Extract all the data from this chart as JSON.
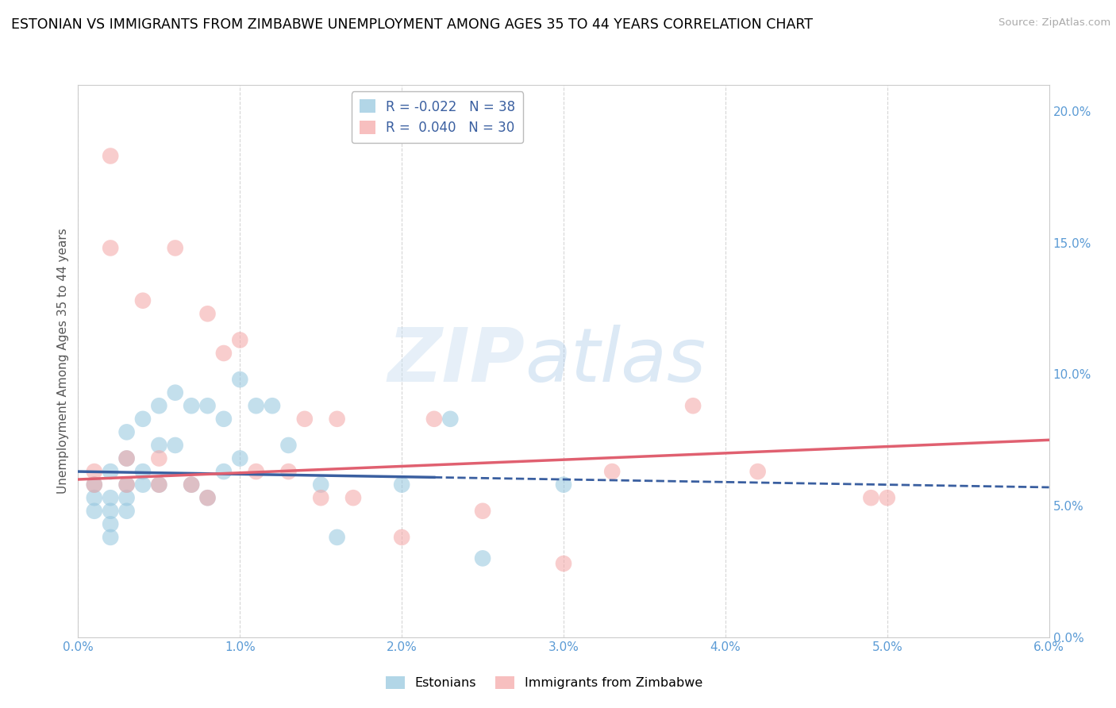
{
  "title": "ESTONIAN VS IMMIGRANTS FROM ZIMBABWE UNEMPLOYMENT AMONG AGES 35 TO 44 YEARS CORRELATION CHART",
  "source": "Source: ZipAtlas.com",
  "ylabel": "Unemployment Among Ages 35 to 44 years",
  "xlim": [
    0.0,
    0.06
  ],
  "ylim": [
    0.0,
    0.21
  ],
  "xticks": [
    0.0,
    0.01,
    0.02,
    0.03,
    0.04,
    0.05,
    0.06
  ],
  "xticklabels": [
    "0.0%",
    "1.0%",
    "2.0%",
    "3.0%",
    "4.0%",
    "5.0%",
    "6.0%"
  ],
  "yticks": [
    0.0,
    0.05,
    0.1,
    0.15,
    0.2
  ],
  "yticklabels": [
    "0.0%",
    "5.0%",
    "10.0%",
    "15.0%",
    "20.0%"
  ],
  "watermark_zip": "ZIP",
  "watermark_atlas": "atlas",
  "legend_r1": "R = -0.022",
  "legend_n1": "N = 38",
  "legend_r2": "R =  0.040",
  "legend_n2": "N = 30",
  "color_estonian": "#92c5de",
  "color_zimbabwe": "#f4a5a5",
  "color_estonian_line": "#3a5fa0",
  "color_zimbabwe_line": "#e06070",
  "color_axis_text": "#5b9bd5",
  "estonians_x": [
    0.001,
    0.001,
    0.001,
    0.002,
    0.002,
    0.002,
    0.002,
    0.002,
    0.003,
    0.003,
    0.003,
    0.003,
    0.003,
    0.004,
    0.004,
    0.004,
    0.005,
    0.005,
    0.005,
    0.006,
    0.006,
    0.007,
    0.007,
    0.008,
    0.008,
    0.009,
    0.009,
    0.01,
    0.01,
    0.011,
    0.012,
    0.013,
    0.015,
    0.016,
    0.02,
    0.023,
    0.025,
    0.03
  ],
  "estonians_y": [
    0.058,
    0.053,
    0.048,
    0.063,
    0.053,
    0.048,
    0.043,
    0.038,
    0.078,
    0.068,
    0.058,
    0.053,
    0.048,
    0.083,
    0.063,
    0.058,
    0.088,
    0.073,
    0.058,
    0.093,
    0.073,
    0.088,
    0.058,
    0.088,
    0.053,
    0.083,
    0.063,
    0.098,
    0.068,
    0.088,
    0.088,
    0.073,
    0.058,
    0.038,
    0.058,
    0.083,
    0.03,
    0.058
  ],
  "zimbabwe_x": [
    0.001,
    0.001,
    0.002,
    0.002,
    0.003,
    0.003,
    0.004,
    0.005,
    0.005,
    0.006,
    0.007,
    0.008,
    0.008,
    0.009,
    0.01,
    0.011,
    0.013,
    0.014,
    0.015,
    0.016,
    0.017,
    0.02,
    0.022,
    0.025,
    0.03,
    0.033,
    0.038,
    0.042,
    0.049,
    0.05
  ],
  "zimbabwe_y": [
    0.063,
    0.058,
    0.183,
    0.148,
    0.068,
    0.058,
    0.128,
    0.068,
    0.058,
    0.148,
    0.058,
    0.053,
    0.123,
    0.108,
    0.113,
    0.063,
    0.063,
    0.083,
    0.053,
    0.083,
    0.053,
    0.038,
    0.083,
    0.048,
    0.028,
    0.063,
    0.088,
    0.063,
    0.053,
    0.053
  ],
  "trend_est_x0": 0.0,
  "trend_est_x1": 0.06,
  "trend_est_y0": 0.063,
  "trend_est_y1": 0.057,
  "trend_zim_x0": 0.0,
  "trend_zim_x1": 0.06,
  "trend_zim_y0": 0.06,
  "trend_zim_y1": 0.075
}
